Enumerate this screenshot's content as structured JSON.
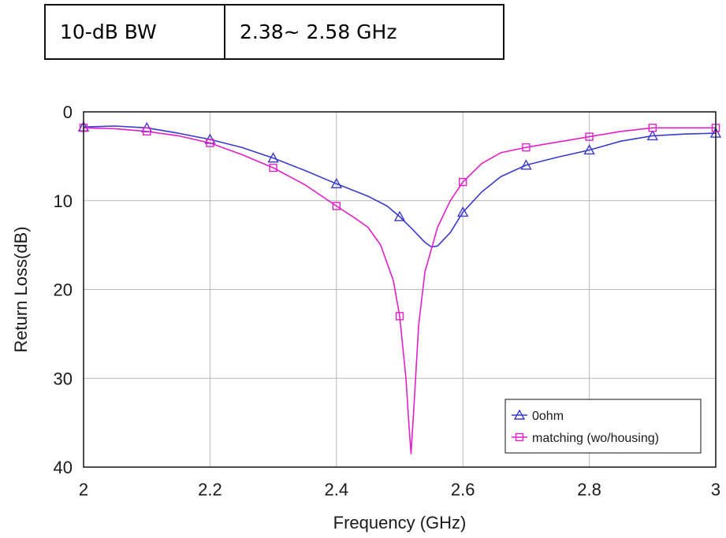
{
  "bandwidth_table": {
    "label": "10-dB BW",
    "value": "2.38~ 2.58 GHz"
  },
  "chart_data": {
    "type": "line",
    "xlabel": "Frequency (GHz)",
    "ylabel": "Return Loss(dB)",
    "xlim": [
      2,
      3
    ],
    "ylim": [
      0,
      40
    ],
    "y_inverted": true,
    "grid": true,
    "x_ticks": [
      "2",
      "2.2",
      "2.4",
      "2.6",
      "2.8",
      "3"
    ],
    "x_tick_values": [
      2,
      2.2,
      2.4,
      2.6,
      2.8,
      3
    ],
    "y_ticks": [
      "0",
      "10",
      "20",
      "30",
      "40"
    ],
    "y_tick_values": [
      0,
      10,
      20,
      30,
      40
    ],
    "legend_position": "bottom-right",
    "series": [
      {
        "name": "0ohm",
        "color": "#3a3acc",
        "marker": "triangle",
        "markers": [
          [
            2.0,
            1.7
          ],
          [
            2.1,
            1.8
          ],
          [
            2.2,
            3.1
          ],
          [
            2.3,
            5.2
          ],
          [
            2.4,
            8.1
          ],
          [
            2.5,
            11.8
          ],
          [
            2.6,
            11.3
          ],
          [
            2.7,
            6.0
          ],
          [
            2.8,
            4.3
          ],
          [
            2.9,
            2.7
          ],
          [
            3.0,
            2.4
          ]
        ],
        "curve": [
          [
            2.0,
            1.7
          ],
          [
            2.05,
            1.6
          ],
          [
            2.1,
            1.8
          ],
          [
            2.15,
            2.4
          ],
          [
            2.2,
            3.1
          ],
          [
            2.25,
            4.0
          ],
          [
            2.3,
            5.2
          ],
          [
            2.35,
            6.6
          ],
          [
            2.4,
            8.1
          ],
          [
            2.45,
            9.5
          ],
          [
            2.48,
            10.6
          ],
          [
            2.5,
            11.8
          ],
          [
            2.52,
            13.2
          ],
          [
            2.54,
            14.7
          ],
          [
            2.55,
            15.2
          ],
          [
            2.56,
            15.1
          ],
          [
            2.58,
            13.6
          ],
          [
            2.6,
            11.3
          ],
          [
            2.63,
            9.0
          ],
          [
            2.66,
            7.3
          ],
          [
            2.7,
            6.0
          ],
          [
            2.75,
            5.1
          ],
          [
            2.8,
            4.3
          ],
          [
            2.85,
            3.3
          ],
          [
            2.9,
            2.7
          ],
          [
            2.95,
            2.5
          ],
          [
            3.0,
            2.4
          ]
        ]
      },
      {
        "name": "matching (wo/housing)",
        "color": "#e020c8",
        "marker": "square",
        "markers": [
          [
            2.0,
            1.8
          ],
          [
            2.1,
            2.2
          ],
          [
            2.2,
            3.5
          ],
          [
            2.3,
            6.3
          ],
          [
            2.4,
            10.6
          ],
          [
            2.5,
            23.0
          ],
          [
            2.6,
            7.9
          ],
          [
            2.7,
            4.0
          ],
          [
            2.8,
            2.8
          ],
          [
            2.9,
            1.8
          ],
          [
            3.0,
            1.8
          ]
        ],
        "curve": [
          [
            2.0,
            1.8
          ],
          [
            2.05,
            1.9
          ],
          [
            2.1,
            2.2
          ],
          [
            2.15,
            2.7
          ],
          [
            2.2,
            3.5
          ],
          [
            2.25,
            4.8
          ],
          [
            2.3,
            6.3
          ],
          [
            2.35,
            8.2
          ],
          [
            2.4,
            10.6
          ],
          [
            2.43,
            12.0
          ],
          [
            2.45,
            13.0
          ],
          [
            2.47,
            15.0
          ],
          [
            2.49,
            19.0
          ],
          [
            2.5,
            23.0
          ],
          [
            2.51,
            30.0
          ],
          [
            2.515,
            35.5
          ],
          [
            2.518,
            38.5
          ],
          [
            2.522,
            34.0
          ],
          [
            2.53,
            24.0
          ],
          [
            2.54,
            18.0
          ],
          [
            2.56,
            13.0
          ],
          [
            2.58,
            10.0
          ],
          [
            2.6,
            7.9
          ],
          [
            2.63,
            5.8
          ],
          [
            2.66,
            4.6
          ],
          [
            2.7,
            4.0
          ],
          [
            2.75,
            3.4
          ],
          [
            2.8,
            2.8
          ],
          [
            2.85,
            2.2
          ],
          [
            2.9,
            1.8
          ],
          [
            2.95,
            1.8
          ],
          [
            3.0,
            1.8
          ]
        ]
      }
    ]
  }
}
